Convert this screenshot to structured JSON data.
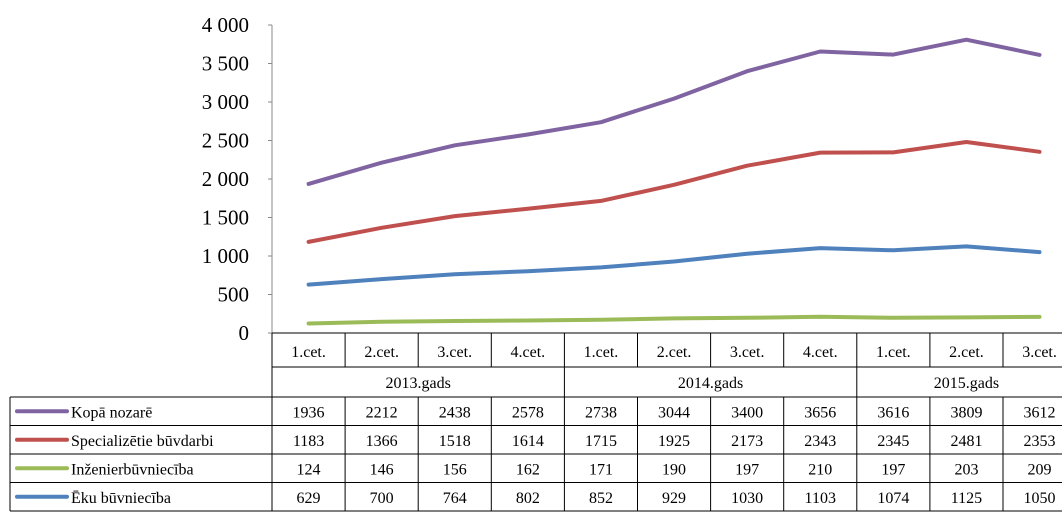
{
  "chart_data": {
    "type": "line",
    "title": "",
    "xlabel": "",
    "ylabel": "",
    "ylim": [
      0,
      4000
    ],
    "yticks": [
      0,
      500,
      1000,
      1500,
      2000,
      2500,
      3000,
      3500,
      4000
    ],
    "ytick_labels": [
      "0",
      "500",
      "1 000",
      "1 500",
      "2 000",
      "2 500",
      "3 000",
      "3 500",
      "4 000"
    ],
    "grid": false,
    "legend": "table-bottom",
    "categories": [
      "1.cet.",
      "2.cet.",
      "3.cet.",
      "4.cet.",
      "1.cet.",
      "2.cet.",
      "3.cet.",
      "4.cet.",
      "1.cet.",
      "2.cet.",
      "3.cet."
    ],
    "groups": [
      {
        "label": "2013.gads",
        "count": 4
      },
      {
        "label": "2014.gads",
        "count": 4
      },
      {
        "label": "2015.gads",
        "count": 3
      }
    ],
    "series": [
      {
        "name": "Kopā nozarē",
        "color": "#8064A2",
        "values": [
          1936,
          2212,
          2438,
          2578,
          2738,
          3044,
          3400,
          3656,
          3616,
          3809,
          3612
        ]
      },
      {
        "name": "Specializētie būvdarbi",
        "color": "#C0504D",
        "values": [
          1183,
          1366,
          1518,
          1614,
          1715,
          1925,
          2173,
          2343,
          2345,
          2481,
          2353
        ]
      },
      {
        "name": "Inženierbūvniecība",
        "color": "#9BBB59",
        "values": [
          124,
          146,
          156,
          162,
          171,
          190,
          197,
          210,
          197,
          203,
          209
        ]
      },
      {
        "name": "Ēku būvniecība",
        "color": "#4F81BD",
        "values": [
          629,
          700,
          764,
          802,
          852,
          929,
          1030,
          1103,
          1074,
          1125,
          1050
        ]
      }
    ]
  }
}
